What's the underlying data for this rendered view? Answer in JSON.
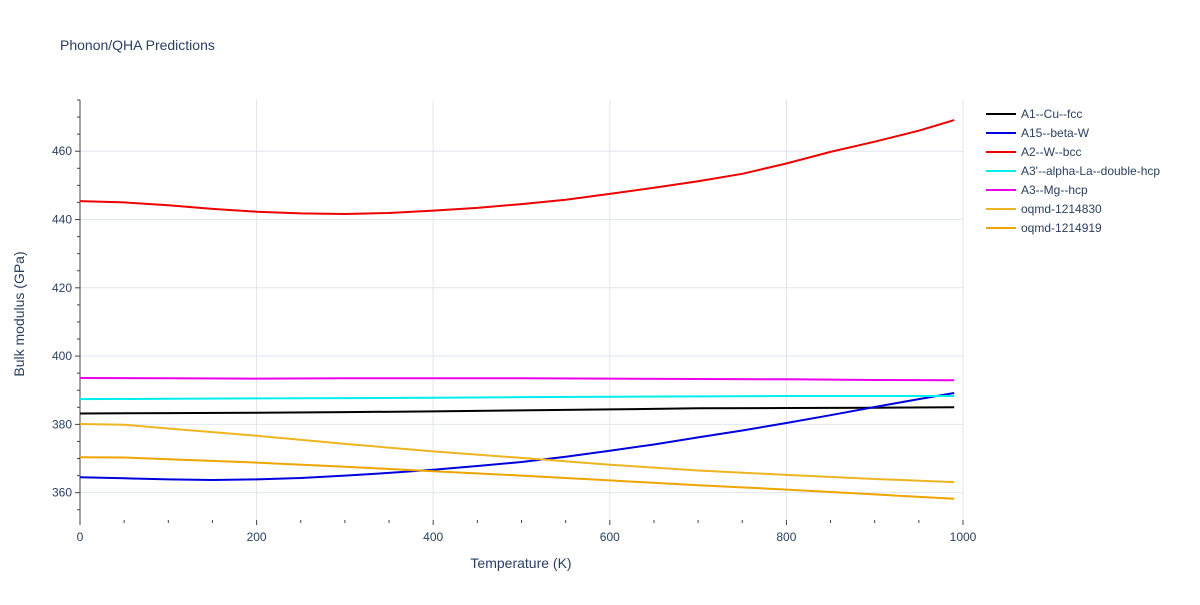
{
  "chart_data": {
    "type": "line",
    "title": "Phonon/QHA Predictions",
    "xlabel": "Temperature (K)",
    "ylabel": "Bulk modulus (GPa)",
    "xlim": [
      0,
      1000
    ],
    "ylim": [
      352,
      475
    ],
    "x_ticks": [
      0,
      200,
      400,
      600,
      800,
      1000
    ],
    "y_ticks": [
      360,
      380,
      400,
      420,
      440,
      460
    ],
    "grid": true,
    "legend_position": "right",
    "series": [
      {
        "name": "A1--Cu--fcc",
        "color": "#000000",
        "x": [
          0,
          100,
          200,
          300,
          400,
          500,
          600,
          700,
          800,
          900,
          990
        ],
        "y": [
          383.2,
          383.3,
          383.4,
          383.6,
          383.8,
          384.1,
          384.4,
          384.7,
          384.8,
          384.9,
          385.0
        ]
      },
      {
        "name": "A15--beta-W",
        "color": "#0000dd",
        "x": [
          0,
          50,
          100,
          150,
          200,
          250,
          300,
          350,
          400,
          450,
          500,
          550,
          600,
          650,
          700,
          750,
          800,
          850,
          900,
          950,
          990
        ],
        "y": [
          364.5,
          364.2,
          363.9,
          363.7,
          363.9,
          364.3,
          365.0,
          365.8,
          366.7,
          367.8,
          369.0,
          370.5,
          372.3,
          374.1,
          376.2,
          378.2,
          380.4,
          382.7,
          385.1,
          387.4,
          389.2
        ]
      },
      {
        "name": "A2--W--bcc",
        "color": "#ee0000",
        "x": [
          0,
          50,
          100,
          150,
          200,
          250,
          300,
          350,
          400,
          450,
          500,
          550,
          600,
          650,
          700,
          750,
          800,
          850,
          900,
          950,
          990
        ],
        "y": [
          445.4,
          445.0,
          444.2,
          443.1,
          442.3,
          441.8,
          441.6,
          441.9,
          442.6,
          443.4,
          444.5,
          445.8,
          447.5,
          449.3,
          451.2,
          453.4,
          456.4,
          459.8,
          462.8,
          466.0,
          469.1
        ]
      },
      {
        "name": "A3'--alpha-La--double-hcp",
        "color": "#00eeee",
        "x": [
          0,
          100,
          200,
          300,
          400,
          500,
          600,
          700,
          800,
          900,
          990
        ],
        "y": [
          387.4,
          387.5,
          387.6,
          387.7,
          387.8,
          388.0,
          388.1,
          388.2,
          388.3,
          388.3,
          388.3
        ]
      },
      {
        "name": "A3--Mg--hcp",
        "color": "#ee00ee",
        "x": [
          0,
          100,
          200,
          300,
          400,
          500,
          600,
          700,
          800,
          900,
          990
        ],
        "y": [
          393.6,
          393.5,
          393.4,
          393.5,
          393.5,
          393.5,
          393.4,
          393.3,
          393.2,
          393.0,
          392.9
        ]
      },
      {
        "name": "oqmd-1214830",
        "color": "#eeb422",
        "x": [
          0,
          50,
          100,
          200,
          300,
          400,
          500,
          600,
          700,
          800,
          900,
          990
        ],
        "y": [
          380.1,
          379.9,
          378.8,
          376.7,
          374.3,
          372.1,
          370.2,
          368.2,
          366.5,
          365.2,
          364.0,
          363.1
        ]
      },
      {
        "name": "oqmd-1214919",
        "color": "#eea500",
        "x": [
          0,
          50,
          100,
          200,
          300,
          400,
          500,
          600,
          700,
          800,
          900,
          990
        ],
        "y": [
          370.4,
          370.3,
          369.8,
          368.8,
          367.6,
          366.3,
          365.0,
          363.6,
          362.2,
          360.9,
          359.5,
          358.2
        ]
      }
    ]
  }
}
